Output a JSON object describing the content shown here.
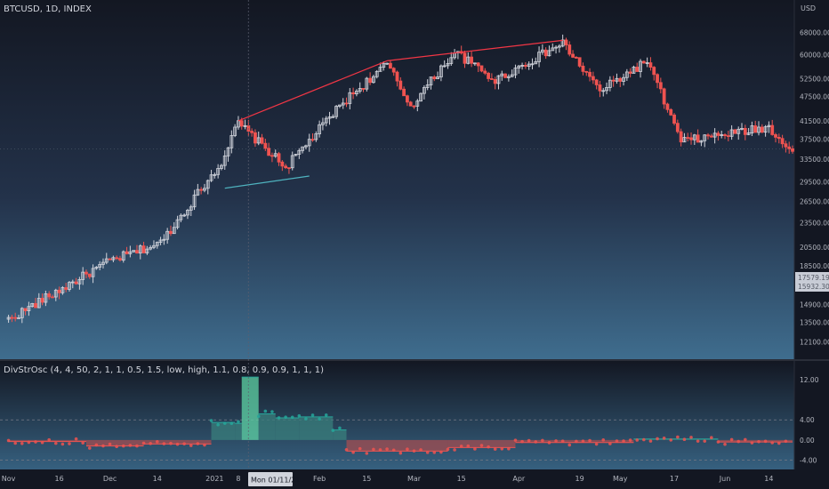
{
  "main_pane": {
    "legend": "BTCUSD, 1D, INDEX",
    "axis_unit": "USD",
    "price_ticks": [
      {
        "label": "68000.00",
        "price": 68000
      },
      {
        "label": "60000.00",
        "price": 60000
      },
      {
        "label": "52500.00",
        "price": 52500
      },
      {
        "label": "47500.00",
        "price": 47500
      },
      {
        "label": "41500.00",
        "price": 41500
      },
      {
        "label": "37500.00",
        "price": 37500
      },
      {
        "label": "33500.00",
        "price": 33500
      },
      {
        "label": "29500.00",
        "price": 29500
      },
      {
        "label": "26500.00",
        "price": 26500
      },
      {
        "label": "23500.00",
        "price": 23500
      },
      {
        "label": "20500.00",
        "price": 20500
      },
      {
        "label": "18500.00",
        "price": 18500
      },
      {
        "label": "14900.00",
        "price": 14900
      },
      {
        "label": "13500.00",
        "price": 13500
      },
      {
        "label": "12100.00",
        "price": 12100
      }
    ],
    "badge_lines": [
      "17579.19",
      "15932.30"
    ],
    "price_range": [
      11200,
      73000
    ],
    "log_scale": true
  },
  "osc_pane": {
    "legend": "DivStrOsc (4, 4, 50, 2, 1, 1, 0.5, 1.5, low, high, 1.1, 0.8, 0.9, 0.9, 1, 1, 1)",
    "ticks": [
      {
        "label": "12.00",
        "value": 12
      },
      {
        "label": "4.00",
        "value": 4
      },
      {
        "label": "0.00",
        "value": 0
      },
      {
        "label": "-4.00",
        "value": -4
      }
    ],
    "dashed_levels": [
      4,
      -4
    ],
    "value_range": [
      -5.5,
      15
    ]
  },
  "time_axis": {
    "labels": [
      {
        "label": "Nov",
        "day": 0
      },
      {
        "label": "16",
        "day": 15
      },
      {
        "label": "Dec",
        "day": 30
      },
      {
        "label": "14",
        "day": 44
      },
      {
        "label": "2021",
        "day": 61
      },
      {
        "label": "8",
        "day": 68
      },
      {
        "label": "Feb",
        "day": 92
      },
      {
        "label": "15",
        "day": 106
      },
      {
        "label": "Mar",
        "day": 120
      },
      {
        "label": "15",
        "day": 134
      },
      {
        "label": "Apr",
        "day": 151
      },
      {
        "label": "19",
        "day": 169
      },
      {
        "label": "May",
        "day": 181
      },
      {
        "label": "17",
        "day": 197
      },
      {
        "label": "Jun",
        "day": 212
      },
      {
        "label": "14",
        "day": 225
      }
    ],
    "crosshair_label": "Mon 01/11/21",
    "crosshair_day": 71,
    "day_range": [
      -2,
      232
    ]
  },
  "colors": {
    "up": "#d1d4dc",
    "down": "#ef5350",
    "trend_line": "#f23645",
    "support_line": "#4fb3bf",
    "osc_bull": "#26a69a",
    "osc_bear": "#ef5350",
    "osc_fill": "#3a7f7c",
    "bg_top": "#131722",
    "bg_bottom": "#3e6b8c"
  },
  "chart_data": [
    {
      "type": "candlestick",
      "title": "BTCUSD, 1D, INDEX",
      "y_scale": "log",
      "key_closes": [
        {
          "date": "2020-11-01",
          "close": 13700
        },
        {
          "date": "2020-12-01",
          "close": 19000
        },
        {
          "date": "2020-12-16",
          "close": 21000
        },
        {
          "date": "2021-01-03",
          "close": 33000
        },
        {
          "date": "2021-01-08",
          "close": 41000
        },
        {
          "date": "2021-01-22",
          "close": 32000
        },
        {
          "date": "2021-02-08",
          "close": 46000
        },
        {
          "date": "2021-02-21",
          "close": 57000
        },
        {
          "date": "2021-02-28",
          "close": 45000
        },
        {
          "date": "2021-03-13",
          "close": 61000
        },
        {
          "date": "2021-03-25",
          "close": 52000
        },
        {
          "date": "2021-04-14",
          "close": 64000
        },
        {
          "date": "2021-04-25",
          "close": 49000
        },
        {
          "date": "2021-05-09",
          "close": 58000
        },
        {
          "date": "2021-05-19",
          "close": 37000
        },
        {
          "date": "2021-06-14",
          "close": 40000
        },
        {
          "date": "2021-06-21",
          "close": 35000
        }
      ],
      "trendlines": [
        {
          "from": {
            "date": "2021-01-08",
            "price": 41500
          },
          "to": {
            "date": "2021-02-21",
            "price": 58000
          }
        },
        {
          "from": {
            "date": "2021-02-21",
            "price": 58000
          },
          "to": {
            "date": "2021-04-14",
            "price": 65000
          }
        },
        {
          "from": {
            "date": "2021-01-04",
            "price": 28500
          },
          "to": {
            "date": "2021-01-29",
            "price": 30500
          }
        }
      ]
    },
    {
      "type": "area",
      "title": "DivStrOsc",
      "segments": [
        {
          "from_day": 0,
          "to_day": 23,
          "value": -0.3
        },
        {
          "from_day": 23,
          "to_day": 40,
          "value": -1.2
        },
        {
          "from_day": 40,
          "to_day": 60,
          "value": -0.8
        },
        {
          "from_day": 60,
          "to_day": 67,
          "value": 3.5
        },
        {
          "from_day": 67,
          "to_day": 69,
          "value": 3.3
        },
        {
          "from_day": 69,
          "to_day": 74,
          "value": 12.5
        },
        {
          "from_day": 74,
          "to_day": 79,
          "value": 5.2
        },
        {
          "from_day": 79,
          "to_day": 86,
          "value": 4.4
        },
        {
          "from_day": 86,
          "to_day": 96,
          "value": 4.6
        },
        {
          "from_day": 96,
          "to_day": 100,
          "value": 2.0
        },
        {
          "from_day": 100,
          "to_day": 130,
          "value": -2.2
        },
        {
          "from_day": 130,
          "to_day": 150,
          "value": -1.5
        },
        {
          "from_day": 150,
          "to_day": 185,
          "value": -0.5
        },
        {
          "from_day": 185,
          "to_day": 210,
          "value": 0.2
        },
        {
          "from_day": 210,
          "to_day": 232,
          "value": -0.4
        }
      ]
    }
  ]
}
